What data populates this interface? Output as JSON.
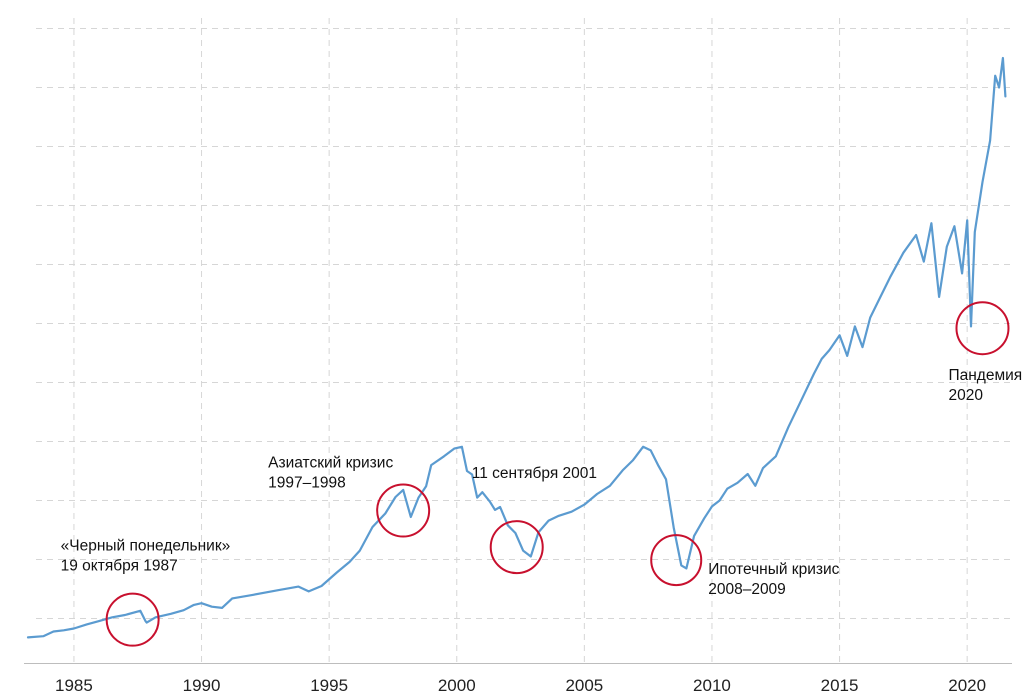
{
  "colors": {
    "line": "#5b9bd0",
    "grid": "#d6d6d6",
    "circle": "#c8102e",
    "text": "#111111",
    "background": "#ffffff"
  },
  "chart_data": {
    "type": "line",
    "title": "",
    "xlabel": "",
    "ylabel": "",
    "grid": true,
    "grid_style": "dashed",
    "xlim": [
      1983.2,
      2021.6
    ],
    "ylim": [
      0,
      100
    ],
    "x_ticks": [
      1985,
      1990,
      1995,
      2000,
      2005,
      2010,
      2015,
      2020
    ],
    "x_tick_labels": [
      "1985",
      "1990",
      "1995",
      "2000",
      "2005",
      "2010",
      "2015",
      "2020"
    ],
    "y_gridlines": [
      5,
      15,
      25,
      35,
      45,
      55,
      65,
      75,
      85,
      95,
      105
    ],
    "series": [
      {
        "x": [
          1983.2,
          1983.8,
          1984.2,
          1984.6,
          1985.0,
          1985.5,
          1986.0,
          1986.5,
          1987.0,
          1987.6,
          1987.8,
          1987.85,
          1988.2,
          1988.8,
          1989.3,
          1989.7,
          1990.0,
          1990.4,
          1990.8,
          1991.2,
          1992.0,
          1993.0,
          1993.8,
          1994.2,
          1994.7,
          1995.3,
          1995.8,
          1996.2,
          1996.7,
          1997.2,
          1997.6,
          1997.9,
          1998.2,
          1998.5,
          1998.8,
          1999.0,
          1999.5,
          1999.9,
          2000.2,
          2000.4,
          2000.6,
          2000.8,
          2001.0,
          2001.3,
          2001.5,
          2001.7,
          2002.0,
          2002.3,
          2002.6,
          2002.9,
          2003.2,
          2003.6,
          2004.0,
          2004.5,
          2005.0,
          2005.5,
          2006.0,
          2006.5,
          2006.9,
          2007.3,
          2007.6,
          2007.9,
          2008.2,
          2008.5,
          2008.8,
          2009.0,
          2009.3,
          2009.7,
          2010.0,
          2010.3,
          2010.6,
          2011.0,
          2011.4,
          2011.7,
          2012.0,
          2012.5,
          2013.0,
          2013.5,
          2014.0,
          2014.3,
          2014.6,
          2015.0,
          2015.3,
          2015.6,
          2015.9,
          2016.2,
          2016.6,
          2017.0,
          2017.5,
          2018.0,
          2018.3,
          2018.6,
          2018.9,
          2019.2,
          2019.5,
          2019.8,
          2020.0,
          2020.15,
          2020.3,
          2020.6,
          2020.9,
          2021.1,
          2021.25,
          2021.4,
          2021.5
        ],
        "values": [
          1.8,
          2.0,
          2.8,
          3.0,
          3.3,
          4.0,
          4.6,
          5.2,
          5.6,
          6.3,
          4.6,
          4.3,
          5.2,
          5.8,
          6.4,
          7.3,
          7.6,
          7.0,
          6.8,
          8.4,
          9.0,
          9.8,
          10.4,
          9.6,
          10.5,
          12.8,
          14.6,
          16.5,
          20.5,
          22.8,
          25.6,
          26.8,
          22.2,
          25.5,
          27.4,
          31.0,
          32.5,
          33.8,
          34.1,
          30.0,
          29.4,
          25.5,
          26.4,
          24.8,
          23.4,
          23.9,
          20.8,
          19.5,
          16.5,
          15.5,
          19.6,
          21.6,
          22.4,
          23.1,
          24.3,
          26.1,
          27.5,
          30.1,
          31.8,
          34.1,
          33.5,
          30.9,
          28.6,
          20.4,
          14.0,
          13.5,
          19.0,
          22.0,
          24.0,
          25.0,
          27.0,
          28.0,
          29.5,
          27.5,
          30.5,
          32.5,
          37.5,
          42.0,
          46.5,
          49.0,
          50.5,
          53.0,
          49.5,
          54.5,
          51.0,
          56.0,
          59.5,
          63.0,
          67.0,
          70.0,
          65.5,
          72.0,
          59.5,
          68.0,
          71.5,
          63.5,
          72.5,
          54.5,
          70.5,
          79.0,
          86.0,
          97.0,
          95.0,
          100.0,
          93.5
        ]
      }
    ],
    "annotations": [
      {
        "lines": [
          "«Черный понедельник»",
          "19 октября 1987"
        ],
        "x": 1987.3,
        "y": 4.8
      },
      {
        "lines": [
          "Азиатский кризис",
          "1997–1998"
        ],
        "x": 1997.9,
        "y": 23.3
      },
      {
        "lines": [
          "11 сентября 2001"
        ],
        "x": 2002.35,
        "y": 17.1
      },
      {
        "lines": [
          "Ипотечный кризис",
          "2008–2009"
        ],
        "x": 2008.6,
        "y": 14.9
      },
      {
        "lines": [
          "Пандемия",
          "2020"
        ],
        "x": 2020.6,
        "y": 54.2
      }
    ]
  }
}
